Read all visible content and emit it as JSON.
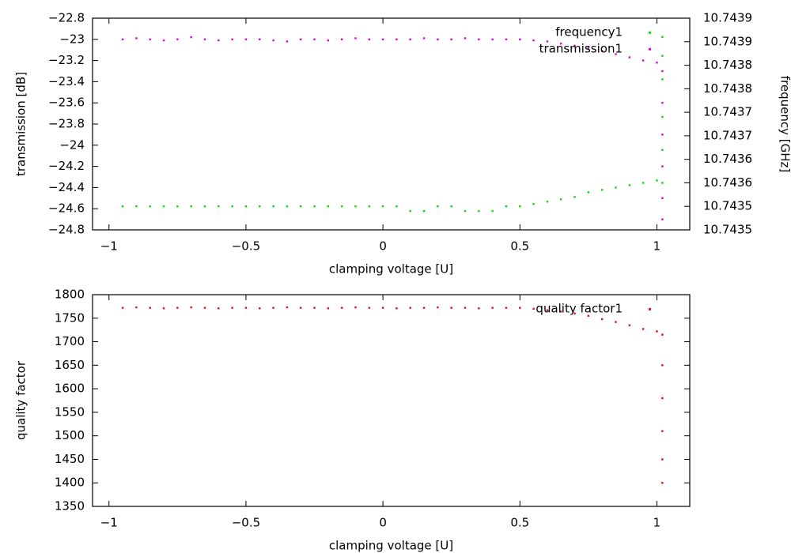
{
  "chart_data": [
    {
      "type": "scatter",
      "xlabel": "clamping voltage [U]",
      "ylabel": "transmission [dB]",
      "y2label": "frequency [GHz]",
      "xlim": [
        -1.06,
        1.12
      ],
      "xticks": [
        {
          "value": -1,
          "label": "−1"
        },
        {
          "value": -0.5,
          "label": "−0.5"
        },
        0,
        0.5,
        1
      ],
      "ylim": [
        -24.8,
        -22.8
      ],
      "yticks": [
        {
          "value": -24.8,
          "label": "−24.8"
        },
        {
          "value": -24.6,
          "label": "−24.6"
        },
        {
          "value": -24.4,
          "label": "−24.4"
        },
        {
          "value": -24.2,
          "label": "−24.2"
        },
        {
          "value": -24,
          "label": "−24"
        },
        {
          "value": -23.8,
          "label": "−23.8"
        },
        {
          "value": -23.6,
          "label": "−23.6"
        },
        {
          "value": -23.4,
          "label": "−23.4"
        },
        {
          "value": -23.2,
          "label": "−23.2"
        },
        {
          "value": -23,
          "label": "−23"
        },
        {
          "value": -22.8,
          "label": "−22.8"
        }
      ],
      "y2lim": [
        10.74348,
        10.74393
      ],
      "y2ticks": [
        {
          "value": 10.74348,
          "label": "10.7435"
        },
        {
          "value": 10.74353,
          "label": "10.7435"
        },
        {
          "value": 10.74358,
          "label": "10.7436"
        },
        {
          "value": 10.74363,
          "label": "10.7436"
        },
        {
          "value": 10.74368,
          "label": "10.7437"
        },
        {
          "value": 10.74373,
          "label": "10.7437"
        },
        {
          "value": 10.74378,
          "label": "10.7438"
        },
        {
          "value": 10.74383,
          "label": "10.7438"
        },
        {
          "value": 10.74388,
          "label": "10.7439"
        },
        {
          "value": 10.74393,
          "label": "10.7439"
        }
      ],
      "grid": false,
      "legend": "top-right",
      "x": [
        -0.95,
        -0.9,
        -0.85,
        -0.8,
        -0.75,
        -0.7,
        -0.65,
        -0.6,
        -0.55,
        -0.5,
        -0.45,
        -0.4,
        -0.35,
        -0.3,
        -0.25,
        -0.2,
        -0.15,
        -0.1,
        -0.05,
        0,
        0.05,
        0.1,
        0.15,
        0.2,
        0.25,
        0.3,
        0.35,
        0.4,
        0.45,
        0.5,
        0.55,
        0.6,
        0.65,
        0.7,
        0.75,
        0.8,
        0.85,
        0.9,
        0.95,
        1.0,
        1.02,
        1.02,
        1.02,
        1.02,
        1.02,
        1.02
      ],
      "series": [
        {
          "name": "frequency1",
          "color": "#00e000",
          "axis": "y2",
          "values": [
            10.74353,
            10.74353,
            10.74353,
            10.74353,
            10.74353,
            10.74353,
            10.74353,
            10.74353,
            10.74353,
            10.74353,
            10.74353,
            10.74353,
            10.74353,
            10.74353,
            10.74353,
            10.74353,
            10.74353,
            10.74353,
            10.74353,
            10.74353,
            10.74353,
            10.74352,
            10.74352,
            10.74353,
            10.74353,
            10.74352,
            10.74352,
            10.74352,
            10.74353,
            10.74353,
            10.743535,
            10.74354,
            10.743545,
            10.74355,
            10.74356,
            10.743565,
            10.74357,
            10.743575,
            10.74358,
            10.743585,
            10.74358,
            10.74365,
            10.74372,
            10.7438,
            10.74385,
            10.74389
          ]
        },
        {
          "name": "transmission1",
          "color": "#e000e0",
          "values": [
            -23.0,
            -22.99,
            -23.0,
            -23.01,
            -23.0,
            -22.98,
            -23.0,
            -23.01,
            -23.0,
            -23.0,
            -23.0,
            -23.01,
            -23.02,
            -23.0,
            -23.0,
            -23.01,
            -23.0,
            -22.99,
            -23.0,
            -23.0,
            -23.0,
            -23.0,
            -22.99,
            -23.0,
            -23.0,
            -22.99,
            -23.0,
            -23.0,
            -23.0,
            -23.0,
            -23.01,
            -23.02,
            -23.04,
            -23.06,
            -23.08,
            -23.11,
            -23.14,
            -23.17,
            -23.2,
            -23.22,
            -23.3,
            -23.6,
            -23.9,
            -24.2,
            -24.5,
            -24.7
          ]
        }
      ]
    },
    {
      "type": "scatter",
      "xlabel": "clamping voltage [U]",
      "ylabel": "quality factor",
      "xlim": [
        -1.06,
        1.12
      ],
      "xticks": [
        {
          "value": -1,
          "label": "−1"
        },
        {
          "value": -0.5,
          "label": "−0.5"
        },
        0,
        0.5,
        1
      ],
      "ylim": [
        1350,
        1800
      ],
      "yticks": [
        1350,
        1400,
        1450,
        1500,
        1550,
        1600,
        1650,
        1700,
        1750,
        1800
      ],
      "grid": false,
      "legend": "top-right",
      "x": [
        -0.95,
        -0.9,
        -0.85,
        -0.8,
        -0.75,
        -0.7,
        -0.65,
        -0.6,
        -0.55,
        -0.5,
        -0.45,
        -0.4,
        -0.35,
        -0.3,
        -0.25,
        -0.2,
        -0.15,
        -0.1,
        -0.05,
        0,
        0.05,
        0.1,
        0.15,
        0.2,
        0.25,
        0.3,
        0.35,
        0.4,
        0.45,
        0.5,
        0.55,
        0.6,
        0.65,
        0.7,
        0.75,
        0.8,
        0.85,
        0.9,
        0.95,
        1.0,
        1.02,
        1.02,
        1.02,
        1.02,
        1.02,
        1.02
      ],
      "series": [
        {
          "name": "quality factor1",
          "color": "#e01010",
          "values": [
            1772,
            1773,
            1772,
            1771,
            1772,
            1773,
            1772,
            1771,
            1772,
            1772,
            1771,
            1772,
            1773,
            1772,
            1772,
            1771,
            1772,
            1773,
            1772,
            1772,
            1771,
            1772,
            1772,
            1773,
            1772,
            1772,
            1771,
            1772,
            1772,
            1772,
            1770,
            1767,
            1764,
            1760,
            1755,
            1748,
            1742,
            1735,
            1727,
            1722,
            1715,
            1650,
            1580,
            1510,
            1450,
            1400
          ]
        }
      ]
    }
  ]
}
